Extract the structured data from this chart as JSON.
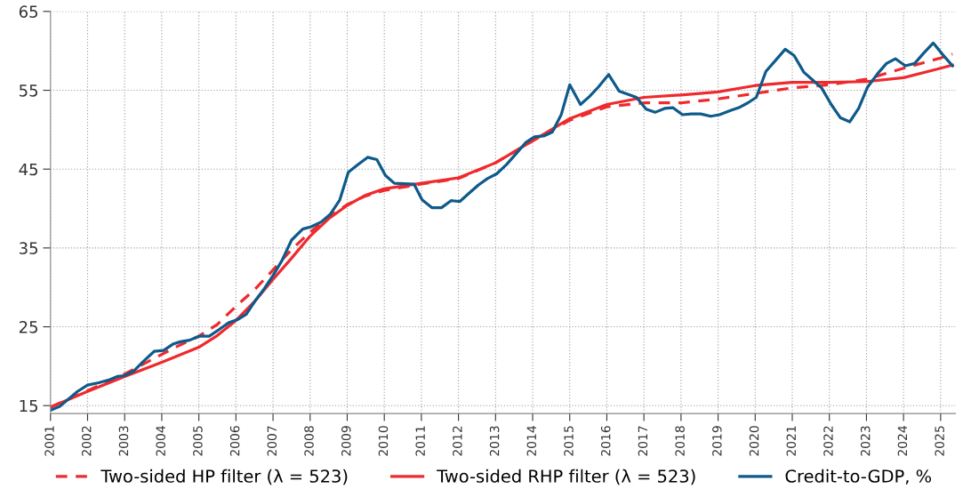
{
  "chart_data": {
    "type": "line",
    "xlim": [
      2001,
      2025.4
    ],
    "ylim": [
      14,
      65
    ],
    "xticks": [
      2001,
      2002,
      2003,
      2004,
      2005,
      2006,
      2007,
      2008,
      2009,
      2010,
      2011,
      2012,
      2013,
      2014,
      2015,
      2016,
      2017,
      2018,
      2019,
      2020,
      2021,
      2022,
      2023,
      2024,
      2025
    ],
    "yticks": [
      15,
      25,
      35,
      45,
      55,
      65
    ],
    "grid": true,
    "legend": "bottom",
    "series": [
      {
        "name": "Two-sided HP filter (λ = 523)",
        "color": "#ee2a2e",
        "line_style": "dashed",
        "x": [
          2001,
          2002,
          2003,
          2004,
          2004.5,
          2005,
          2005.5,
          2006,
          2006.5,
          2007,
          2007.5,
          2008,
          2008.5,
          2009,
          2009.5,
          2010,
          2011,
          2012,
          2013,
          2014,
          2015,
          2016,
          2017,
          2018,
          2019,
          2020,
          2021,
          2022,
          2023,
          2024,
          2025,
          2025.32
        ],
        "values": [
          14.8,
          16.9,
          19.0,
          21.5,
          22.7,
          23.8,
          25.3,
          27.6,
          29.7,
          32.2,
          34.8,
          37.0,
          38.9,
          40.5,
          41.6,
          42.3,
          43.1,
          43.8,
          45.8,
          48.6,
          51.2,
          52.9,
          53.4,
          53.4,
          53.9,
          54.6,
          55.3,
          55.7,
          56.4,
          57.8,
          59.1,
          59.6
        ]
      },
      {
        "name": "Two-sided RHP filter (λ = 523)",
        "color": "#ee2a2e",
        "line_style": "solid",
        "x": [
          2001,
          2002,
          2003,
          2004,
          2005,
          2005.5,
          2006,
          2006.5,
          2007,
          2007.5,
          2008,
          2008.5,
          2009,
          2009.5,
          2010,
          2011,
          2012,
          2013,
          2014,
          2015,
          2016,
          2017,
          2018,
          2019,
          2020,
          2021,
          2022,
          2023,
          2024,
          2025,
          2025.32
        ],
        "values": [
          14.8,
          16.8,
          18.7,
          20.5,
          22.4,
          23.9,
          25.8,
          28.2,
          31.0,
          33.7,
          36.5,
          38.7,
          40.4,
          41.7,
          42.5,
          43.2,
          43.9,
          45.8,
          48.6,
          51.4,
          53.2,
          54.1,
          54.4,
          54.8,
          55.6,
          56.0,
          56.0,
          56.1,
          56.6,
          57.8,
          58.2
        ]
      },
      {
        "name": "Credit-to-GDP, %",
        "color": "#0e5a8a",
        "line_style": "solid",
        "x": [
          2001.0,
          2001.25,
          2001.73,
          2002.0,
          2002.3,
          2002.6,
          2002.8,
          2003.0,
          2003.25,
          2003.5,
          2003.8,
          2004.05,
          2004.3,
          2004.5,
          2004.75,
          2005.0,
          2005.28,
          2005.56,
          2005.8,
          2006.04,
          2006.28,
          2006.52,
          2006.76,
          2007.0,
          2007.24,
          2007.5,
          2007.8,
          2008.03,
          2008.3,
          2008.55,
          2008.8,
          2009.03,
          2009.27,
          2009.55,
          2009.8,
          2010.03,
          2010.27,
          2010.8,
          2011.02,
          2011.29,
          2011.54,
          2011.8,
          2012.04,
          2012.3,
          2012.54,
          2012.78,
          2013.03,
          2013.3,
          2013.58,
          2013.82,
          2014.05,
          2014.3,
          2014.53,
          2014.77,
          2015.0,
          2015.29,
          2015.53,
          2015.77,
          2016.05,
          2016.33,
          2016.8,
          2017.06,
          2017.3,
          2017.56,
          2017.78,
          2018.04,
          2018.28,
          2018.53,
          2018.8,
          2019.04,
          2019.32,
          2019.56,
          2019.8,
          2020.03,
          2020.29,
          2020.55,
          2020.81,
          2021.05,
          2021.31,
          2021.55,
          2021.79,
          2022.05,
          2022.3,
          2022.55,
          2022.79,
          2023.03,
          2023.3,
          2023.54,
          2023.78,
          2024.05,
          2024.3,
          2024.54,
          2024.8,
          2025.06,
          2025.32
        ],
        "values": [
          14.4,
          14.9,
          16.8,
          17.6,
          17.9,
          18.3,
          18.7,
          18.8,
          19.4,
          20.6,
          21.9,
          22.0,
          22.8,
          23.1,
          23.3,
          23.8,
          23.8,
          24.7,
          25.5,
          25.9,
          26.6,
          28.3,
          29.8,
          31.5,
          33.4,
          36.0,
          37.4,
          37.7,
          38.3,
          39.3,
          41.1,
          44.6,
          45.5,
          46.5,
          46.2,
          44.2,
          43.2,
          43.1,
          41.1,
          40.1,
          40.1,
          41.0,
          40.9,
          42.0,
          43.0,
          43.8,
          44.4,
          45.6,
          47.1,
          48.4,
          49.1,
          49.2,
          49.7,
          51.9,
          55.7,
          53.2,
          54.2,
          55.4,
          57.0,
          54.9,
          54.1,
          52.6,
          52.2,
          52.7,
          52.8,
          51.9,
          52.0,
          52.0,
          51.7,
          51.9,
          52.4,
          52.8,
          53.4,
          54.1,
          57.4,
          58.8,
          60.2,
          59.4,
          57.3,
          56.3,
          55.3,
          53.2,
          51.5,
          51.0,
          52.7,
          55.4,
          57.1,
          58.4,
          59.0,
          58.1,
          58.4,
          59.7,
          61.0,
          59.5,
          58.1
        ]
      }
    ]
  }
}
